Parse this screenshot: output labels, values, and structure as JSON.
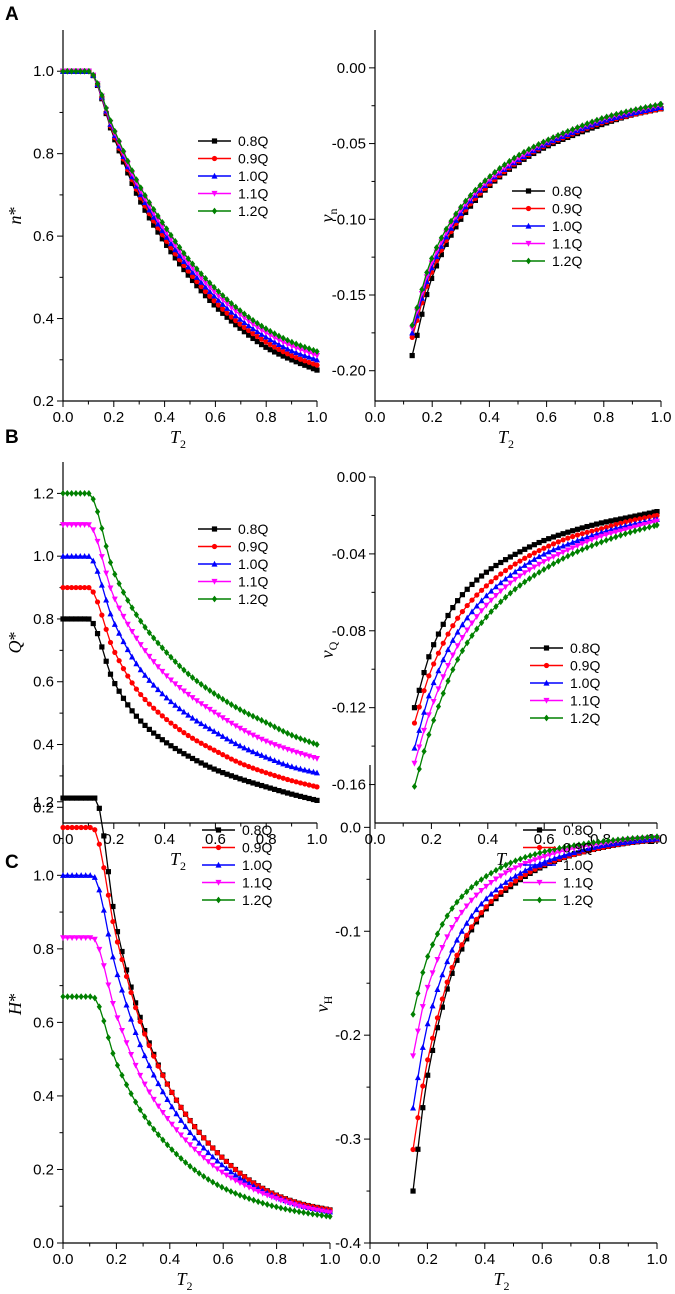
{
  "figure": {
    "panels": [
      {
        "letter": "A",
        "charts": [
          0,
          1
        ]
      },
      {
        "letter": "B",
        "charts": [
          2,
          3
        ]
      },
      {
        "letter": "C",
        "charts": [
          4,
          5
        ]
      }
    ]
  },
  "series_colors": {
    "0.8Q": "#000000",
    "0.9Q": "#ff0000",
    "1.0Q": "#0000ff",
    "1.1Q": "#ff00ff",
    "1.2Q": "#008000"
  },
  "series_markers": {
    "0.8Q": "square",
    "0.9Q": "circle",
    "1.0Q": "triangle-up",
    "1.1Q": "triangle-down",
    "1.2Q": "diamond"
  },
  "chart_data": [
    {
      "type": "line",
      "panel": "A",
      "ylabel": "n",
      "ylabel_suffix": "*",
      "xlabel": "T",
      "xlabel_sub": "2",
      "xlim": [
        0.0,
        1.0
      ],
      "ylim": [
        0.2,
        1.1
      ],
      "xticks": [
        "0.0",
        "0.2",
        "0.4",
        "0.6",
        "0.8",
        "1.0"
      ],
      "yticks": [
        "0.2",
        "0.4",
        "0.6",
        "0.8",
        "1.0"
      ],
      "legend_position": "middle-right",
      "legend": [
        "0.8Q",
        "0.9Q",
        "1.0Q",
        "1.1Q",
        "1.2Q"
      ],
      "series": [
        {
          "name": "0.8Q",
          "x": [
            0.0,
            0.1,
            0.2,
            0.3,
            0.4,
            0.5,
            0.6,
            0.7,
            0.8,
            0.9,
            1.0
          ],
          "values": [
            1.0,
            1.0,
            0.84,
            0.69,
            0.585,
            0.5,
            0.43,
            0.375,
            0.33,
            0.3,
            0.275
          ]
        },
        {
          "name": "0.9Q",
          "x": [
            0.0,
            0.1,
            0.2,
            0.3,
            0.4,
            0.5,
            0.6,
            0.7,
            0.8,
            0.9,
            1.0
          ],
          "values": [
            1.0,
            1.0,
            0.845,
            0.7,
            0.595,
            0.51,
            0.44,
            0.385,
            0.343,
            0.31,
            0.287
          ]
        },
        {
          "name": "1.0Q",
          "x": [
            0.0,
            0.1,
            0.2,
            0.3,
            0.4,
            0.5,
            0.6,
            0.7,
            0.8,
            0.9,
            1.0
          ],
          "values": [
            1.0,
            1.0,
            0.85,
            0.708,
            0.605,
            0.52,
            0.452,
            0.397,
            0.355,
            0.322,
            0.3
          ]
        },
        {
          "name": "1.1Q",
          "x": [
            0.0,
            0.1,
            0.2,
            0.3,
            0.4,
            0.5,
            0.6,
            0.7,
            0.8,
            0.9,
            1.0
          ],
          "values": [
            1.0,
            1.0,
            0.855,
            0.716,
            0.615,
            0.53,
            0.462,
            0.408,
            0.365,
            0.333,
            0.31
          ]
        },
        {
          "name": "1.2Q",
          "x": [
            0.0,
            0.1,
            0.2,
            0.3,
            0.4,
            0.5,
            0.6,
            0.7,
            0.8,
            0.9,
            1.0
          ],
          "values": [
            1.0,
            1.0,
            0.86,
            0.724,
            0.625,
            0.54,
            0.473,
            0.418,
            0.375,
            0.343,
            0.32
          ]
        }
      ]
    },
    {
      "type": "line",
      "panel": "A",
      "ylabel": "v",
      "ylabel_sub": "n",
      "xlabel": "T",
      "xlabel_sub": "2",
      "xlim": [
        0.0,
        1.0
      ],
      "ylim": [
        -0.22,
        0.025
      ],
      "xticks": [
        "0.0",
        "0.2",
        "0.4",
        "0.6",
        "0.8",
        "1.0"
      ],
      "yticks": [
        "-0.20",
        "-0.15",
        "-0.10",
        "-0.05",
        "0.00"
      ],
      "legend_position": "middle-right",
      "legend": [
        "0.8Q",
        "0.9Q",
        "1.0Q",
        "1.1Q",
        "1.2Q"
      ],
      "series": [
        {
          "name": "0.8Q",
          "x": [
            0.13,
            0.2,
            0.3,
            0.4,
            0.5,
            0.6,
            0.7,
            0.8,
            0.9,
            1.0
          ],
          "values": [
            -0.19,
            -0.138,
            -0.1,
            -0.078,
            -0.063,
            -0.052,
            -0.044,
            -0.037,
            -0.031,
            -0.027
          ]
        },
        {
          "name": "0.9Q",
          "x": [
            0.13,
            0.2,
            0.3,
            0.4,
            0.5,
            0.6,
            0.7,
            0.8,
            0.9,
            1.0
          ],
          "values": [
            -0.178,
            -0.134,
            -0.098,
            -0.077,
            -0.062,
            -0.051,
            -0.043,
            -0.036,
            -0.031,
            -0.027
          ]
        },
        {
          "name": "1.0Q",
          "x": [
            0.13,
            0.2,
            0.3,
            0.4,
            0.5,
            0.6,
            0.7,
            0.8,
            0.9,
            1.0
          ],
          "values": [
            -0.175,
            -0.131,
            -0.096,
            -0.075,
            -0.061,
            -0.05,
            -0.042,
            -0.035,
            -0.03,
            -0.026
          ]
        },
        {
          "name": "1.1Q",
          "x": [
            0.13,
            0.2,
            0.3,
            0.4,
            0.5,
            0.6,
            0.7,
            0.8,
            0.9,
            1.0
          ],
          "values": [
            -0.172,
            -0.128,
            -0.094,
            -0.074,
            -0.06,
            -0.049,
            -0.041,
            -0.034,
            -0.029,
            -0.025
          ]
        },
        {
          "name": "1.2Q",
          "x": [
            0.13,
            0.2,
            0.3,
            0.4,
            0.5,
            0.6,
            0.7,
            0.8,
            0.9,
            1.0
          ],
          "values": [
            -0.17,
            -0.125,
            -0.092,
            -0.072,
            -0.058,
            -0.048,
            -0.04,
            -0.033,
            -0.028,
            -0.024
          ]
        }
      ]
    },
    {
      "type": "line",
      "panel": "B",
      "ylabel": "Q",
      "ylabel_suffix": "*",
      "xlabel": "T",
      "xlabel_sub": "2",
      "xlim": [
        0.0,
        1.0
      ],
      "ylim": [
        0.15,
        1.3
      ],
      "xticks": [
        "0.0",
        "0.2",
        "0.4",
        "0.6",
        "0.8",
        "1.0"
      ],
      "yticks": [
        "0.2",
        "0.4",
        "0.6",
        "0.8",
        "1.0",
        "1.2"
      ],
      "legend_position": "top-right",
      "legend": [
        "0.8Q",
        "0.9Q",
        "1.0Q",
        "1.1Q",
        "1.2Q"
      ],
      "series": [
        {
          "name": "0.8Q",
          "x": [
            0.0,
            0.1,
            0.2,
            0.3,
            0.4,
            0.5,
            0.6,
            0.7,
            0.8,
            0.9,
            1.0
          ],
          "values": [
            0.8,
            0.8,
            0.6,
            0.48,
            0.41,
            0.36,
            0.32,
            0.29,
            0.265,
            0.242,
            0.222
          ]
        },
        {
          "name": "0.9Q",
          "x": [
            0.0,
            0.1,
            0.2,
            0.3,
            0.4,
            0.5,
            0.6,
            0.7,
            0.8,
            0.9,
            1.0
          ],
          "values": [
            0.9,
            0.9,
            0.7,
            0.565,
            0.485,
            0.425,
            0.38,
            0.34,
            0.31,
            0.285,
            0.265
          ]
        },
        {
          "name": "1.0Q",
          "x": [
            0.0,
            0.1,
            0.2,
            0.3,
            0.4,
            0.5,
            0.6,
            0.7,
            0.8,
            0.9,
            1.0
          ],
          "values": [
            1.0,
            1.0,
            0.79,
            0.645,
            0.555,
            0.49,
            0.44,
            0.395,
            0.36,
            0.33,
            0.31
          ]
        },
        {
          "name": "1.1Q",
          "x": [
            0.0,
            0.1,
            0.2,
            0.3,
            0.4,
            0.5,
            0.6,
            0.7,
            0.8,
            0.9,
            1.0
          ],
          "values": [
            1.1,
            1.1,
            0.87,
            0.725,
            0.625,
            0.555,
            0.5,
            0.45,
            0.41,
            0.38,
            0.355
          ]
        },
        {
          "name": "1.2Q",
          "x": [
            0.0,
            0.1,
            0.2,
            0.3,
            0.4,
            0.5,
            0.6,
            0.7,
            0.8,
            0.9,
            1.0
          ],
          "values": [
            1.2,
            1.2,
            0.95,
            0.8,
            0.7,
            0.62,
            0.56,
            0.51,
            0.47,
            0.43,
            0.4
          ]
        }
      ]
    },
    {
      "type": "line",
      "panel": "B",
      "ylabel": "v",
      "ylabel_sub": "Q",
      "xlabel": "T",
      "xlabel_sub": "2",
      "xlim": [
        0.0,
        1.0
      ],
      "ylim": [
        -0.18,
        0.0
      ],
      "xticks": [
        "0.0",
        "0.2",
        "0.4",
        "0.6",
        "0.8",
        "1.0"
      ],
      "yticks": [
        "-0.16",
        "-0.12",
        "-0.08",
        "-0.04",
        "0.00"
      ],
      "legend_position": "bottom-right",
      "legend": [
        "0.8Q",
        "0.9Q",
        "1.0Q",
        "1.1Q",
        "1.2Q"
      ],
      "series": [
        {
          "name": "0.8Q",
          "x": [
            0.14,
            0.2,
            0.3,
            0.4,
            0.5,
            0.6,
            0.7,
            0.8,
            0.9,
            1.0
          ],
          "values": [
            -0.12,
            -0.09,
            -0.063,
            -0.049,
            -0.04,
            -0.033,
            -0.028,
            -0.024,
            -0.021,
            -0.018
          ]
        },
        {
          "name": "0.9Q",
          "x": [
            0.14,
            0.2,
            0.3,
            0.4,
            0.5,
            0.6,
            0.7,
            0.8,
            0.9,
            1.0
          ],
          "values": [
            -0.128,
            -0.1,
            -0.072,
            -0.056,
            -0.045,
            -0.037,
            -0.031,
            -0.027,
            -0.023,
            -0.02
          ]
        },
        {
          "name": "1.0Q",
          "x": [
            0.14,
            0.2,
            0.3,
            0.4,
            0.5,
            0.6,
            0.7,
            0.8,
            0.9,
            1.0
          ],
          "values": [
            -0.141,
            -0.11,
            -0.079,
            -0.061,
            -0.049,
            -0.04,
            -0.034,
            -0.029,
            -0.025,
            -0.022
          ]
        },
        {
          "name": "1.1Q",
          "x": [
            0.14,
            0.2,
            0.3,
            0.4,
            0.5,
            0.6,
            0.7,
            0.8,
            0.9,
            1.0
          ],
          "values": [
            -0.149,
            -0.12,
            -0.086,
            -0.066,
            -0.053,
            -0.044,
            -0.037,
            -0.031,
            -0.027,
            -0.023
          ]
        },
        {
          "name": "1.2Q",
          "x": [
            0.14,
            0.2,
            0.3,
            0.4,
            0.5,
            0.6,
            0.7,
            0.8,
            0.9,
            1.0
          ],
          "values": [
            -0.161,
            -0.13,
            -0.093,
            -0.072,
            -0.058,
            -0.048,
            -0.04,
            -0.034,
            -0.029,
            -0.025
          ]
        }
      ]
    },
    {
      "type": "line",
      "panel": "C",
      "ylabel": "H",
      "ylabel_suffix": "*",
      "xlabel": "T",
      "xlabel_sub": "2",
      "xlim": [
        0.0,
        1.0
      ],
      "ylim": [
        0.0,
        1.3
      ],
      "xticks": [
        "0.0",
        "0.2",
        "0.4",
        "0.6",
        "0.8",
        "1.0"
      ],
      "yticks": [
        "0.0",
        "0.2",
        "0.4",
        "0.6",
        "0.8",
        "1.0",
        "1.2"
      ],
      "legend_position": "middle-right",
      "legend": [
        "0.8Q",
        "0.9Q",
        "1.0Q",
        "1.1Q",
        "1.2Q"
      ],
      "series": [
        {
          "name": "0.8Q",
          "x": [
            0.0,
            0.12,
            0.2,
            0.3,
            0.4,
            0.5,
            0.6,
            0.7,
            0.8,
            0.9,
            1.0
          ],
          "values": [
            1.21,
            1.21,
            0.86,
            0.59,
            0.42,
            0.31,
            0.23,
            0.17,
            0.13,
            0.105,
            0.09
          ]
        },
        {
          "name": "0.9Q",
          "x": [
            0.0,
            0.11,
            0.2,
            0.3,
            0.4,
            0.5,
            0.6,
            0.7,
            0.8,
            0.9,
            1.0
          ],
          "values": [
            1.13,
            1.13,
            0.83,
            0.58,
            0.42,
            0.31,
            0.23,
            0.17,
            0.13,
            0.105,
            0.09
          ]
        },
        {
          "name": "1.0Q",
          "x": [
            0.0,
            0.11,
            0.2,
            0.3,
            0.4,
            0.5,
            0.6,
            0.7,
            0.8,
            0.9,
            1.0
          ],
          "values": [
            1.0,
            1.0,
            0.74,
            0.52,
            0.38,
            0.28,
            0.21,
            0.16,
            0.125,
            0.1,
            0.085
          ]
        },
        {
          "name": "1.1Q",
          "x": [
            0.0,
            0.11,
            0.2,
            0.3,
            0.4,
            0.5,
            0.6,
            0.7,
            0.8,
            0.9,
            1.0
          ],
          "values": [
            0.83,
            0.83,
            0.62,
            0.44,
            0.33,
            0.25,
            0.19,
            0.15,
            0.12,
            0.097,
            0.082
          ]
        },
        {
          "name": "1.2Q",
          "x": [
            0.0,
            0.11,
            0.2,
            0.3,
            0.4,
            0.5,
            0.6,
            0.7,
            0.8,
            0.9,
            1.0
          ],
          "values": [
            0.67,
            0.67,
            0.49,
            0.35,
            0.26,
            0.195,
            0.15,
            0.12,
            0.098,
            0.083,
            0.072
          ]
        }
      ]
    },
    {
      "type": "line",
      "panel": "C",
      "ylabel": "v",
      "ylabel_sub": "H",
      "xlabel": "T",
      "xlabel_sub": "2",
      "xlim": [
        0.0,
        1.0
      ],
      "ylim": [
        -0.4,
        0.06
      ],
      "xticks": [
        "0.0",
        "0.2",
        "0.4",
        "0.6",
        "0.8",
        "1.0"
      ],
      "yticks": [
        "-0.4",
        "-0.3",
        "-0.2",
        "-0.1",
        "0.0"
      ],
      "legend_position": "middle-right",
      "legend": [
        "0.8Q",
        "0.9Q",
        "1.0Q",
        "1.1Q",
        "1.2Q"
      ],
      "series": [
        {
          "name": "0.8Q",
          "x": [
            0.15,
            0.2,
            0.3,
            0.4,
            0.5,
            0.6,
            0.7,
            0.8,
            0.9,
            1.0
          ],
          "values": [
            -0.35,
            -0.24,
            -0.13,
            -0.08,
            -0.055,
            -0.038,
            -0.027,
            -0.02,
            -0.015,
            -0.012
          ]
        },
        {
          "name": "0.9Q",
          "x": [
            0.15,
            0.2,
            0.3,
            0.4,
            0.5,
            0.6,
            0.7,
            0.8,
            0.9,
            1.0
          ],
          "values": [
            -0.31,
            -0.225,
            -0.125,
            -0.078,
            -0.053,
            -0.037,
            -0.027,
            -0.02,
            -0.015,
            -0.012
          ]
        },
        {
          "name": "1.0Q",
          "x": [
            0.15,
            0.2,
            0.3,
            0.4,
            0.5,
            0.6,
            0.7,
            0.8,
            0.9,
            1.0
          ],
          "values": [
            -0.27,
            -0.19,
            -0.11,
            -0.07,
            -0.048,
            -0.034,
            -0.025,
            -0.018,
            -0.014,
            -0.011
          ]
        },
        {
          "name": "1.1Q",
          "x": [
            0.15,
            0.2,
            0.3,
            0.4,
            0.5,
            0.6,
            0.7,
            0.8,
            0.9,
            1.0
          ],
          "values": [
            -0.22,
            -0.155,
            -0.09,
            -0.058,
            -0.04,
            -0.029,
            -0.021,
            -0.016,
            -0.012,
            -0.01
          ]
        },
        {
          "name": "1.2Q",
          "x": [
            0.15,
            0.2,
            0.3,
            0.4,
            0.5,
            0.6,
            0.7,
            0.8,
            0.9,
            1.0
          ],
          "values": [
            -0.18,
            -0.125,
            -0.073,
            -0.048,
            -0.033,
            -0.024,
            -0.018,
            -0.014,
            -0.011,
            -0.009
          ]
        }
      ]
    }
  ]
}
